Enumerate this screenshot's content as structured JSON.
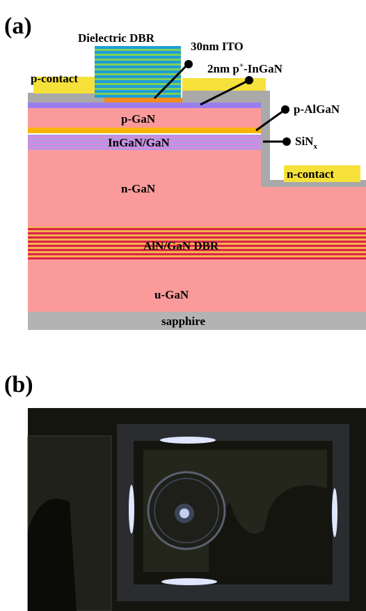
{
  "panel_a": {
    "tag": "(a)",
    "labels": {
      "dielectric_dbr": "Dielectric DBR",
      "ito": "30nm ITO",
      "p_ingan": {
        "text": "2nm p",
        "sup": "+",
        "rest": "-InGaN"
      },
      "p_contact": "p-contact",
      "p_gan": "p-GaN",
      "p_algan": "p-AlGaN",
      "mqw": "InGaN/GaN",
      "sinx": {
        "text": "SiN",
        "sub": "x"
      },
      "n_gan": "n-GaN",
      "n_contact": "n-contact",
      "aln_dbr": "AlN/GaN DBR",
      "u_gan": "u-GaN",
      "sapphire": "sapphire"
    }
  },
  "panel_b": {
    "tag": "(b)"
  }
}
